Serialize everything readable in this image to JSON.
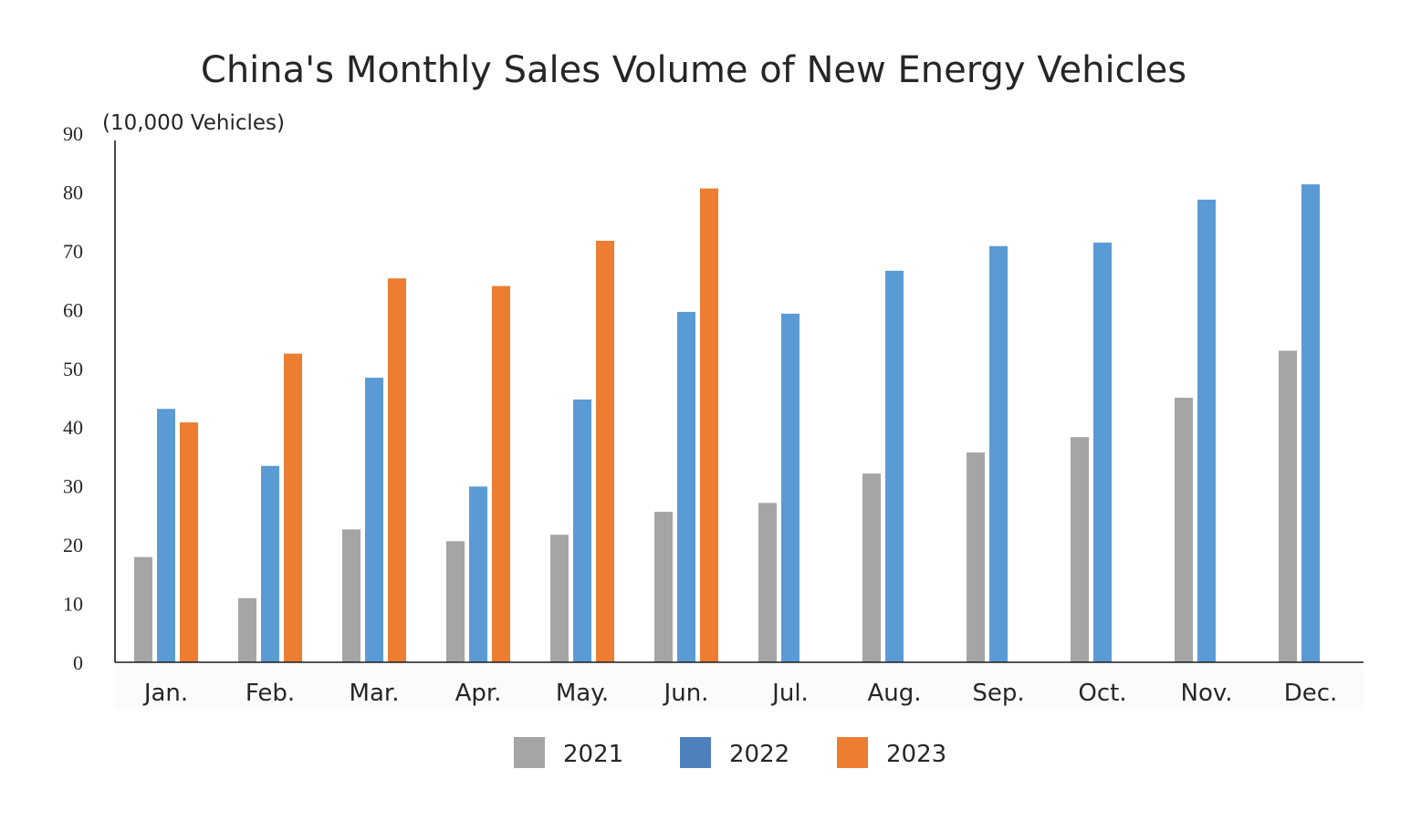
{
  "chart_data": {
    "type": "bar",
    "title": "China's Monthly Sales Volume of New Energy Vehicles",
    "ylabel": "(10,000 Vehicles)",
    "xlabel": "",
    "ylim": [
      0,
      90
    ],
    "yticks": [
      0,
      10,
      20,
      30,
      40,
      50,
      60,
      70,
      80,
      90
    ],
    "categories": [
      "Jan.",
      "Feb.",
      "Mar.",
      "Apr.",
      "May.",
      "Jun.",
      "Jul.",
      "Aug.",
      "Sep.",
      "Oct.",
      "Nov.",
      "Dec."
    ],
    "series": [
      {
        "name": "2021",
        "color": "#a5a5a5",
        "values": [
          17.9,
          10.9,
          22.6,
          20.6,
          21.7,
          25.6,
          27.1,
          32.1,
          35.7,
          38.3,
          45.0,
          53.0
        ]
      },
      {
        "name": "2022",
        "color": "#5b9bd5",
        "values": [
          43.1,
          33.4,
          48.4,
          29.9,
          44.7,
          59.6,
          59.3,
          66.6,
          70.8,
          71.4,
          78.7,
          81.3
        ]
      },
      {
        "name": "2023",
        "color": "#ed7d31",
        "values": [
          40.8,
          52.5,
          65.3,
          64.0,
          71.7,
          80.6,
          null,
          null,
          null,
          null,
          null,
          null
        ]
      }
    ],
    "legend": {
      "position": "bottom",
      "entries": [
        {
          "label": "2021",
          "color": "#a5a5a5"
        },
        {
          "label": "2022",
          "color": "#4f81bd"
        },
        {
          "label": "2023",
          "color": "#ed7d31"
        }
      ]
    },
    "grid": false
  }
}
